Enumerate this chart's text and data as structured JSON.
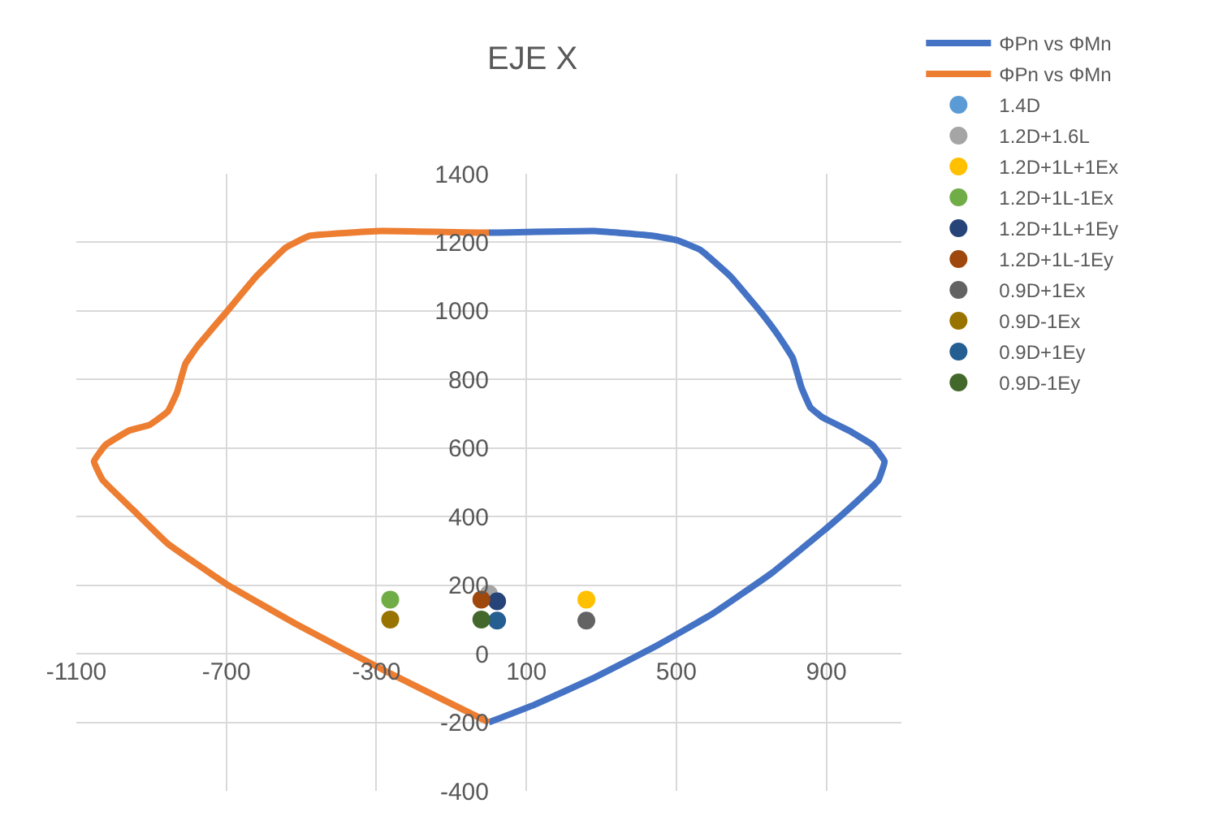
{
  "chart_data": {
    "type": "scatter",
    "title": "EJE X",
    "xlim": [
      -1100,
      1100
    ],
    "ylim": [
      -400,
      1400
    ],
    "xticks": [
      -1100,
      -700,
      -300,
      100,
      500,
      900
    ],
    "yticks": [
      -400,
      -200,
      0,
      200,
      400,
      600,
      800,
      1000,
      1200,
      1400
    ],
    "grid": true,
    "legend": "right",
    "series": [
      {
        "name": "ΦPn vs ΦMn",
        "type": "line",
        "marker": "none",
        "color": "#4472c4",
        "x": [
          0,
          281,
          438,
          502,
          565,
          644,
          723,
          770,
          810,
          833,
          857,
          889,
          960,
          1023,
          1055,
          1039,
          976,
          897,
          755,
          597,
          440,
          281,
          123,
          0
        ],
        "values": [
          1228,
          1233,
          1219,
          1206,
          1177,
          1101,
          999,
          931,
          863,
          778,
          719,
          690,
          651,
          609,
          561,
          507,
          439,
          363,
          236,
          117,
          19,
          -70,
          -148,
          -200
        ]
      },
      {
        "name": "ΦPn vs ΦMn",
        "type": "line",
        "marker": "none",
        "color": "#ed7d31",
        "x": [
          0,
          -288,
          -478,
          -541,
          -620,
          -698,
          -777,
          -809,
          -832,
          -856,
          -904,
          -959,
          -1022,
          -1053,
          -1030,
          -951,
          -856,
          -698,
          -508,
          -271,
          0
        ],
        "values": [
          1228,
          1233,
          1219,
          1185,
          1101,
          999,
          897,
          846,
          761,
          707,
          668,
          651,
          609,
          561,
          507,
          422,
          321,
          202,
          83,
          -53,
          -200
        ]
      },
      {
        "name": "1.4D",
        "marker": "circle",
        "color": "#5b9bd5",
        "x": [
          null
        ],
        "values": [
          null
        ]
      },
      {
        "name": "1.2D+1.6L",
        "marker": "circle",
        "color": "#a5a5a5",
        "x": [
          0
        ],
        "values": [
          175
        ]
      },
      {
        "name": "1.2D+1L+1Ex",
        "marker": "circle",
        "color": "#ffc000",
        "x": [
          260
        ],
        "values": [
          158
        ]
      },
      {
        "name": "1.2D+1L-1Ex",
        "marker": "circle",
        "color": "#70ad47",
        "x": [
          -263
        ],
        "values": [
          158
        ]
      },
      {
        "name": "1.2D+1L+1Ey",
        "marker": "circle",
        "color": "#264478",
        "x": [
          22
        ],
        "values": [
          153
        ]
      },
      {
        "name": "1.2D+1L-1Ey",
        "marker": "circle",
        "color": "#9e480e",
        "x": [
          -20
        ],
        "values": [
          158
        ]
      },
      {
        "name": "0.9D+1Ex",
        "marker": "circle",
        "color": "#636363",
        "x": [
          260
        ],
        "values": [
          97
        ]
      },
      {
        "name": "0.9D-1Ex",
        "marker": "circle",
        "color": "#997300",
        "x": [
          -263
        ],
        "values": [
          100
        ]
      },
      {
        "name": "0.9D+1Ey",
        "marker": "circle",
        "color": "#255e91",
        "x": [
          22
        ],
        "values": [
          97
        ]
      },
      {
        "name": "0.9D-1Ey",
        "marker": "circle",
        "color": "#43682b",
        "x": [
          -20
        ],
        "values": [
          100
        ]
      }
    ]
  }
}
